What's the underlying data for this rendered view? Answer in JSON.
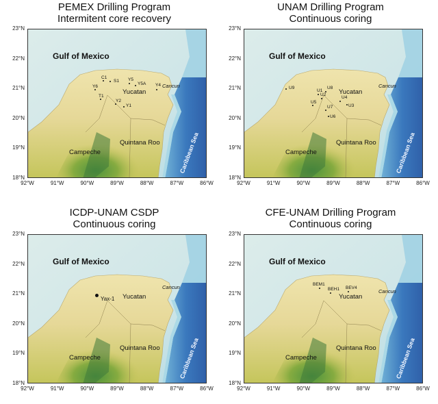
{
  "panels": [
    {
      "title_line1": "PEMEX Drilling Program",
      "title_line2": "Intermitent core recovery",
      "sites": [
        "C1",
        "S1",
        "Y6",
        "Y5",
        "Y5A",
        "Y4",
        "T1",
        "Y2",
        "Y1"
      ]
    },
    {
      "title_line1": "UNAM Drilling Program",
      "title_line2": "Continuous coring",
      "sites": [
        "U9",
        "U1",
        "U8",
        "U2",
        "U4",
        "U5",
        "U3",
        "U7",
        "U6"
      ]
    },
    {
      "title_line1": "ICDP-UNAM CSDP",
      "title_line2": "Continuous coring",
      "sites": [
        "Yax-1"
      ]
    },
    {
      "title_line1": "CFE-UNAM Drilling Program",
      "title_line2": "Continuous coring",
      "sites": [
        "BEM1",
        "BEH1",
        "BEV4"
      ]
    }
  ],
  "map_labels": {
    "gulf": "Gulf of Mexico",
    "yucatan": "Yucatan",
    "cancun": "Cancun",
    "campeche": "Campeche",
    "quintana_roo": "Quintana Roo",
    "caribbean": "Caribbean Sea"
  },
  "lat_ticks": [
    "23°N",
    "22°N",
    "21°N",
    "20°N",
    "19°N",
    "18°N"
  ],
  "lon_ticks": [
    "92°W",
    "91°W",
    "90°W",
    "89°W",
    "88°W",
    "87°W",
    "86°W"
  ],
  "colors": {
    "shallow_sea": "#cfe6e8",
    "land": "#e6d898",
    "land_green": "#7ea83c",
    "deep_sea": "#2f5fa8",
    "reef": "#a7d7e6"
  }
}
